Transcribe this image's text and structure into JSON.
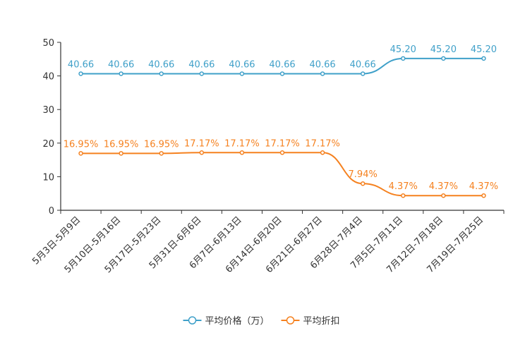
{
  "chart_data": {
    "type": "line",
    "title": "",
    "xlabel": "",
    "ylabel": "",
    "ylim": [
      0,
      50
    ],
    "yticks": [
      0,
      10,
      20,
      30,
      40,
      50
    ],
    "categories": [
      "5月3日-5月9日",
      "5月10日-5月16日",
      "5月17日-5月23日",
      "5月31日-6月6日",
      "6月7日-6月13日",
      "6月14日-6月20日",
      "6月21日-6月27日",
      "6月28日-7月4日",
      "7月5日-7月11日",
      "7月12日-7月18日",
      "7月19日-7月25日"
    ],
    "series": [
      {
        "name": "平均价格（万）",
        "color": "#3fa0c9",
        "values": [
          40.66,
          40.66,
          40.66,
          40.66,
          40.66,
          40.66,
          40.66,
          40.66,
          45.2,
          45.2,
          45.2
        ],
        "labels": [
          "40.66",
          "40.66",
          "40.66",
          "40.66",
          "40.66",
          "40.66",
          "40.66",
          "40.66",
          "45.20",
          "45.20",
          "45.20"
        ]
      },
      {
        "name": "平均折扣",
        "color": "#f5811f",
        "values": [
          16.95,
          16.95,
          16.95,
          17.17,
          17.17,
          17.17,
          17.17,
          7.94,
          4.37,
          4.37,
          4.37
        ],
        "labels": [
          "16.95%",
          "16.95%",
          "16.95%",
          "17.17%",
          "17.17%",
          "17.17%",
          "17.17%",
          "7.94%",
          "4.37%",
          "4.37%",
          "4.37%"
        ]
      }
    ],
    "legend_position": "bottom-center"
  }
}
